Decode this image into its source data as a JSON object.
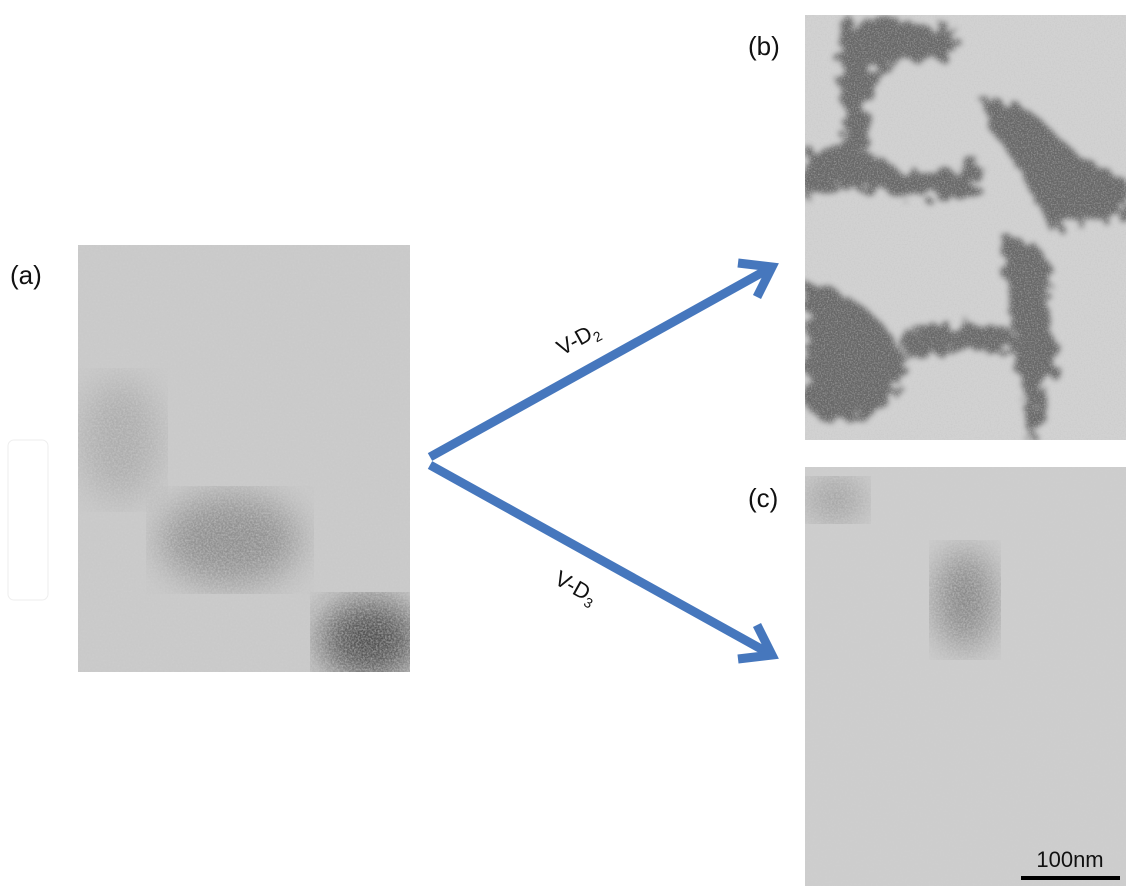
{
  "panels": [
    {
      "label": "(a)"
    },
    {
      "label": "(b)"
    },
    {
      "label": "(c)"
    }
  ],
  "arrows": [
    {
      "label": "V-D",
      "subscript": "2"
    },
    {
      "label": "V-D",
      "subscript": "3"
    }
  ],
  "scale_bar": "100nm"
}
